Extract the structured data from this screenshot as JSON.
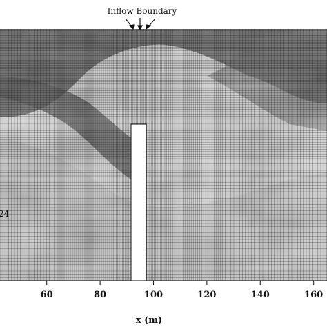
{
  "figure": {
    "annotation": "Inflow Boundary",
    "xlabel": "x (m)",
    "x_ticks": [
      "60",
      "80",
      "100",
      "120",
      "140",
      "160"
    ],
    "x_tick_values": [
      60,
      80,
      100,
      120,
      140,
      160
    ],
    "x_visible_range": [
      42.5,
      165
    ],
    "side_label": "24",
    "colors": {
      "mesh": "#1a1a1a",
      "background": "#ffffff",
      "obstacle": "#ffffff"
    }
  }
}
